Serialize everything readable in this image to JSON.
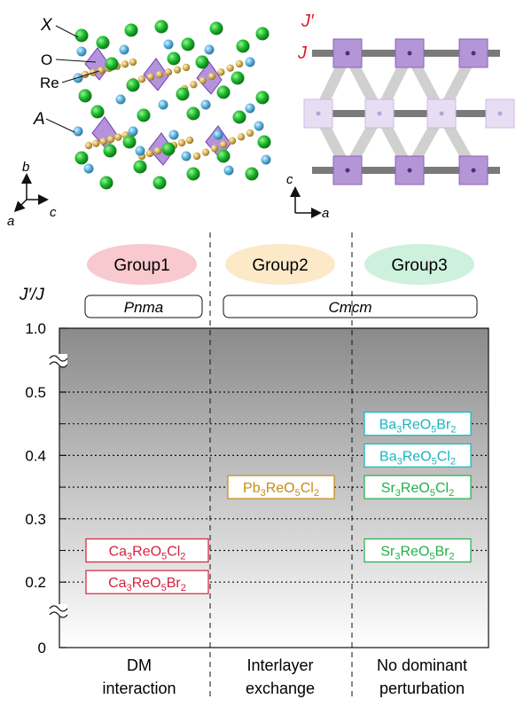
{
  "structure": {
    "labels": {
      "X": "X",
      "O": "O",
      "Re": "Re",
      "A": "A"
    },
    "axes": {
      "b": "b",
      "a": "a",
      "c": "c"
    }
  },
  "lattice": {
    "labels": {
      "J_prime": "J′",
      "J": "J"
    },
    "axes": {
      "c": "c",
      "a": "a"
    }
  },
  "groups": [
    {
      "label": "Group1",
      "color": "#f8c9ce"
    },
    {
      "label": "Group2",
      "color": "#fbe9c8"
    },
    {
      "label": "Group3",
      "color": "#cdf1dc"
    }
  ],
  "space_groups": {
    "left": "Pnma",
    "right": "Cmcm"
  },
  "yaxis": {
    "title": "J′/J",
    "ticks": [
      "1.0",
      "0.5",
      "0.4",
      "0.3",
      "0.2",
      "0"
    ]
  },
  "compounds": {
    "g1": [
      {
        "base": "Ca",
        "n1": "3",
        "mid": "ReO",
        "n2": "5",
        "hal": "Cl",
        "n3": "2",
        "value": 0.25,
        "color": "#d4213d"
      },
      {
        "base": "Ca",
        "n1": "3",
        "mid": "ReO",
        "n2": "5",
        "hal": "Br",
        "n3": "2",
        "value": 0.2,
        "color": "#d4213d"
      }
    ],
    "g2": [
      {
        "base": "Pb",
        "n1": "3",
        "mid": "ReO",
        "n2": "5",
        "hal": "Cl",
        "n3": "2",
        "value": 0.35,
        "color": "#c88a12"
      }
    ],
    "g3": [
      {
        "base": "Ba",
        "n1": "3",
        "mid": "ReO",
        "n2": "5",
        "hal": "Br",
        "n3": "2",
        "value": 0.45,
        "color": "#17b5bf"
      },
      {
        "base": "Ba",
        "n1": "3",
        "mid": "ReO",
        "n2": "5",
        "hal": "Cl",
        "n3": "2",
        "value": 0.4,
        "color": "#17b5bf"
      },
      {
        "base": "Sr",
        "n1": "3",
        "mid": "ReO",
        "n2": "5",
        "hal": "Cl",
        "n3": "2",
        "value": 0.35,
        "color": "#22b04a"
      },
      {
        "base": "Sr",
        "n1": "3",
        "mid": "ReO",
        "n2": "5",
        "hal": "Br",
        "n3": "2",
        "value": 0.25,
        "color": "#22b04a"
      }
    ]
  },
  "mechanisms": [
    {
      "line1": "DM",
      "line2": "interaction"
    },
    {
      "line1": "Interlayer",
      "line2": "exchange"
    },
    {
      "line1": "No dominant",
      "line2": "perturbation"
    }
  ]
}
